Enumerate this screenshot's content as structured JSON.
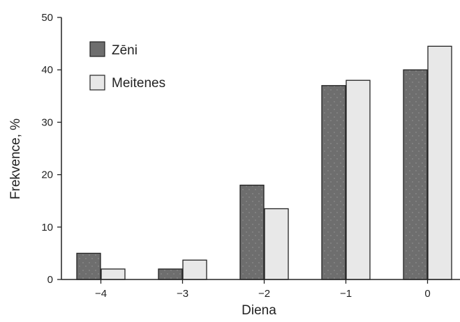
{
  "chart_data": {
    "type": "bar",
    "categories": [
      "−4",
      "−3",
      "−2",
      "−1",
      "0"
    ],
    "series": [
      {
        "name": "Zēni",
        "values": [
          5,
          2,
          18,
          37,
          40
        ],
        "color": "#6e6e6e"
      },
      {
        "name": "Meitenes",
        "values": [
          2,
          3.7,
          13.5,
          38,
          44.5
        ],
        "color": "#e8e8e8"
      }
    ],
    "xlabel": "Diena",
    "ylabel": "Frekvence, %",
    "ylim": [
      0,
      50
    ],
    "yticks": [
      0,
      10,
      20,
      30,
      40,
      50
    ],
    "grid": false,
    "legend": "top-left"
  }
}
